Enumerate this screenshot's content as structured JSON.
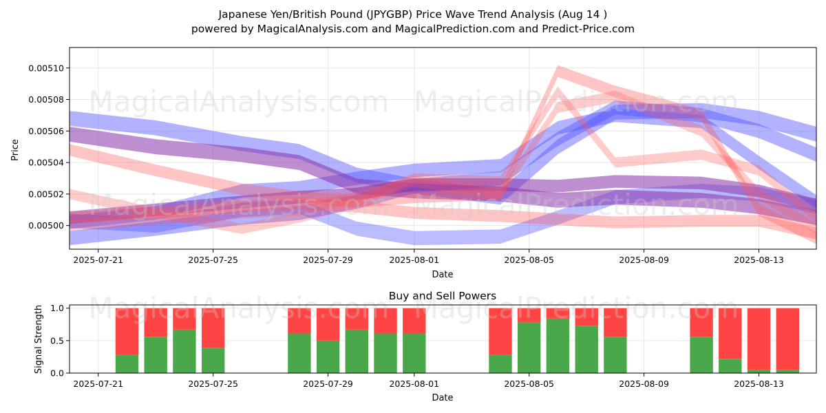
{
  "header": {
    "title_line1": "Japanese Yen/British Pound (JPYGBP) Price Wave Trend Analysis (Aug 14 )",
    "title_line2": "powered by MagicalAnalysis.com and MagicalPrediction.com and Predict-Price.com"
  },
  "watermarks": [
    "MagicalAnalysis.com",
    "MagicalPrediction.com"
  ],
  "colors": {
    "buy": "#4aa84a",
    "sell": "#ff4444",
    "wave_red": "#ff5555",
    "wave_blue": "#5555ff",
    "wave_purple": "#8833aa"
  },
  "chart_data": [
    {
      "type": "area",
      "title": "",
      "xlabel": "Date",
      "ylabel": "Price",
      "x_range": [
        "2025-07-20",
        "2025-08-15"
      ],
      "ylim": [
        0.004985,
        0.005113
      ],
      "x_ticks": [
        "2025-07-21",
        "2025-07-25",
        "2025-07-29",
        "2025-08-01",
        "2025-08-05",
        "2025-08-09",
        "2025-08-13"
      ],
      "y_ticks": [
        "0.00500",
        "0.00502",
        "0.00504",
        "0.00506",
        "0.00508",
        "0.00510"
      ],
      "grid": true,
      "bands": [
        {
          "color": "blue",
          "opacity": 0.45,
          "width": 9.5e-06,
          "points": [
            [
              "2025-07-20",
              0.005068
            ],
            [
              "2025-07-23",
              0.005062
            ],
            [
              "2025-07-26",
              0.005052
            ],
            [
              "2025-07-28",
              0.005047
            ],
            [
              "2025-07-30",
              0.005032
            ],
            [
              "2025-08-01",
              0.005025
            ],
            [
              "2025-08-04",
              0.005018
            ],
            [
              "2025-08-06",
              0.00505
            ],
            [
              "2025-08-08",
              0.005072
            ],
            [
              "2025-08-11",
              0.005073
            ],
            [
              "2025-08-13",
              0.005068
            ],
            [
              "2025-08-15",
              0.005058
            ]
          ]
        },
        {
          "color": "blue",
          "opacity": 0.45,
          "width": 8.5e-06,
          "points": [
            [
              "2025-07-20",
              0.005002
            ],
            [
              "2025-07-23",
              0.005008
            ],
            [
              "2025-07-26",
              0.005022
            ],
            [
              "2025-07-28",
              0.005024
            ],
            [
              "2025-07-30",
              0.00503
            ],
            [
              "2025-08-01",
              0.005035
            ],
            [
              "2025-08-04",
              0.005038
            ],
            [
              "2025-08-06",
              0.005062
            ],
            [
              "2025-08-08",
              0.00507
            ],
            [
              "2025-08-11",
              0.005066
            ],
            [
              "2025-08-13",
              0.00504
            ],
            [
              "2025-08-15",
              0.005015
            ]
          ]
        },
        {
          "color": "blue",
          "opacity": 0.45,
          "width": 9e-06,
          "points": [
            [
              "2025-07-20",
              0.004992
            ],
            [
              "2025-07-23",
              0.004998
            ],
            [
              "2025-07-26",
              0.005005
            ],
            [
              "2025-07-28",
              0.005008
            ],
            [
              "2025-07-30",
              0.005015
            ],
            [
              "2025-08-01",
              0.005025
            ],
            [
              "2025-08-04",
              0.00503
            ],
            [
              "2025-08-06",
              0.005055
            ],
            [
              "2025-08-08",
              0.005075
            ],
            [
              "2025-08-11",
              0.00507
            ],
            [
              "2025-08-13",
              0.00506
            ],
            [
              "2025-08-15",
              0.005045
            ]
          ]
        },
        {
          "color": "blue",
          "opacity": 0.4,
          "width": 9e-06,
          "points": [
            [
              "2025-07-20",
              0.005003
            ],
            [
              "2025-07-23",
              0.005
            ],
            [
              "2025-07-26",
              0.00501
            ],
            [
              "2025-07-28",
              0.005012
            ],
            [
              "2025-07-30",
              0.004998
            ],
            [
              "2025-08-01",
              0.004992
            ],
            [
              "2025-08-04",
              0.004993
            ],
            [
              "2025-08-06",
              0.005005
            ],
            [
              "2025-08-08",
              0.005018
            ],
            [
              "2025-08-11",
              0.005022
            ],
            [
              "2025-08-13",
              0.00502
            ],
            [
              "2025-08-15",
              0.005012
            ]
          ]
        },
        {
          "color": "purple",
          "opacity": 0.55,
          "width": 9.5e-06,
          "points": [
            [
              "2025-07-20",
              0.005058
            ],
            [
              "2025-07-23",
              0.00505
            ],
            [
              "2025-07-26",
              0.005045
            ],
            [
              "2025-07-28",
              0.00504
            ],
            [
              "2025-07-30",
              0.005025
            ],
            [
              "2025-08-01",
              0.005022
            ],
            [
              "2025-08-04",
              0.00502
            ],
            [
              "2025-08-06",
              0.005016
            ],
            [
              "2025-08-08",
              0.005018
            ],
            [
              "2025-08-11",
              0.005016
            ],
            [
              "2025-08-13",
              0.005012
            ],
            [
              "2025-08-15",
              0.005005
            ]
          ]
        },
        {
          "color": "purple",
          "opacity": 0.55,
          "width": 8e-06,
          "points": [
            [
              "2025-07-20",
              0.005005
            ],
            [
              "2025-07-23",
              0.00501
            ],
            [
              "2025-07-26",
              0.005015
            ],
            [
              "2025-07-28",
              0.005018
            ],
            [
              "2025-07-30",
              0.00502
            ],
            [
              "2025-08-01",
              0.005026
            ],
            [
              "2025-08-04",
              0.005026
            ],
            [
              "2025-08-06",
              0.005025
            ],
            [
              "2025-08-08",
              0.005028
            ],
            [
              "2025-08-11",
              0.005027
            ],
            [
              "2025-08-13",
              0.005022
            ],
            [
              "2025-08-15",
              0.005013
            ]
          ]
        },
        {
          "color": "red",
          "opacity": 0.35,
          "width": 7.5e-06,
          "points": [
            [
              "2025-07-20",
              0.005048
            ],
            [
              "2025-07-23",
              0.005035
            ],
            [
              "2025-07-26",
              0.005023
            ],
            [
              "2025-07-28",
              0.005018
            ],
            [
              "2025-07-30",
              0.005015
            ],
            [
              "2025-08-01",
              0.005018
            ],
            [
              "2025-08-04",
              0.00502
            ],
            [
              "2025-08-06",
              0.005098
            ],
            [
              "2025-08-08",
              0.005085
            ],
            [
              "2025-08-11",
              0.00507
            ],
            [
              "2025-08-13",
              0.00501
            ],
            [
              "2025-08-15",
              0.004992
            ]
          ]
        },
        {
          "color": "red",
          "opacity": 0.3,
          "width": 6.5e-06,
          "points": [
            [
              "2025-07-20",
              0.00502
            ],
            [
              "2025-07-23",
              0.005008
            ],
            [
              "2025-07-26",
              0.004998
            ],
            [
              "2025-07-28",
              0.005005
            ],
            [
              "2025-07-30",
              0.005015
            ],
            [
              "2025-08-01",
              0.00503
            ],
            [
              "2025-08-04",
              0.005028
            ],
            [
              "2025-08-06",
              0.005085
            ],
            [
              "2025-08-08",
              0.00504
            ],
            [
              "2025-08-11",
              0.005045
            ],
            [
              "2025-08-13",
              0.005035
            ],
            [
              "2025-08-15",
              0.005005
            ]
          ]
        },
        {
          "color": "red",
          "opacity": 0.3,
          "width": 7e-06,
          "points": [
            [
              "2025-07-20",
              0.005
            ],
            [
              "2025-07-23",
              0.005004
            ],
            [
              "2025-07-26",
              0.005008
            ],
            [
              "2025-07-28",
              0.00501
            ],
            [
              "2025-07-30",
              0.005018
            ],
            [
              "2025-08-01",
              0.005028
            ],
            [
              "2025-08-04",
              0.00502
            ],
            [
              "2025-08-06",
              0.005075
            ],
            [
              "2025-08-08",
              0.005082
            ],
            [
              "2025-08-11",
              0.00506
            ],
            [
              "2025-08-13",
              0.00502
            ],
            [
              "2025-08-15",
              0.004998
            ]
          ]
        },
        {
          "color": "red",
          "opacity": 0.35,
          "width": 7.5e-06,
          "points": [
            [
              "2025-07-20",
              0.005005
            ],
            [
              "2025-07-23",
              0.005008
            ],
            [
              "2025-07-26",
              0.005012
            ],
            [
              "2025-07-28",
              0.005014
            ],
            [
              "2025-07-30",
              0.005012
            ],
            [
              "2025-08-01",
              0.005008
            ],
            [
              "2025-08-04",
              0.005006
            ],
            [
              "2025-08-06",
              0.005004
            ],
            [
              "2025-08-08",
              0.005002
            ],
            [
              "2025-08-11",
              0.005003
            ],
            [
              "2025-08-13",
              0.005003
            ],
            [
              "2025-08-15",
              0.004995
            ]
          ]
        }
      ]
    },
    {
      "type": "bar",
      "title": "Buy and Sell Powers",
      "xlabel": "Date",
      "ylabel": "Signal Strength",
      "x_range": [
        "2025-07-20",
        "2025-08-15"
      ],
      "ylim": [
        0,
        1.05
      ],
      "x_ticks": [
        "2025-07-21",
        "2025-07-25",
        "2025-07-29",
        "2025-08-01",
        "2025-08-05",
        "2025-08-09",
        "2025-08-13"
      ],
      "y_ticks": [
        "0.0",
        "0.5",
        "1.0"
      ],
      "grid": true,
      "dates": [
        "2025-07-22",
        "2025-07-23",
        "2025-07-24",
        "2025-07-25",
        "2025-07-28",
        "2025-07-29",
        "2025-07-30",
        "2025-07-31",
        "2025-08-01",
        "2025-08-04",
        "2025-08-05",
        "2025-08-06",
        "2025-08-07",
        "2025-08-08",
        "2025-08-11",
        "2025-08-12",
        "2025-08-13",
        "2025-08-14"
      ],
      "series": [
        {
          "name": "Buy",
          "values": [
            0.28,
            0.56,
            0.67,
            0.39,
            0.61,
            0.5,
            0.67,
            0.61,
            0.61,
            0.28,
            0.78,
            0.84,
            0.73,
            0.56,
            0.56,
            0.22,
            0.05,
            0.05
          ]
        },
        {
          "name": "Sell",
          "values": [
            0.72,
            0.44,
            0.33,
            0.61,
            0.39,
            0.5,
            0.33,
            0.39,
            0.39,
            0.72,
            0.22,
            0.16,
            0.27,
            0.44,
            0.44,
            0.78,
            0.95,
            0.95
          ]
        }
      ]
    }
  ]
}
